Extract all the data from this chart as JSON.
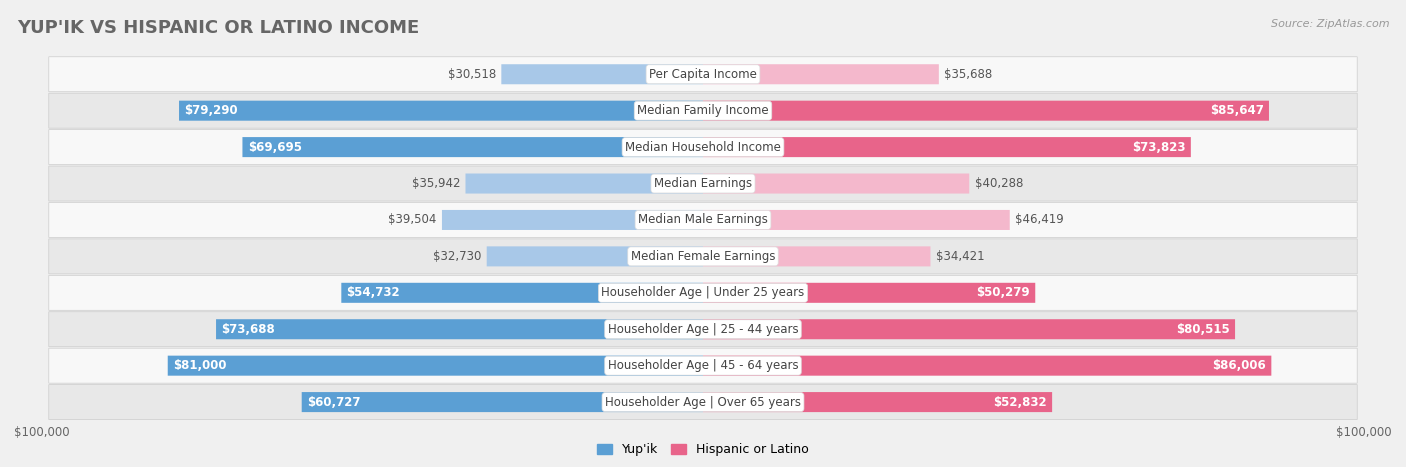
{
  "title": "Yup'ik vs Hispanic or Latino Income",
  "source": "Source: ZipAtlas.com",
  "categories": [
    "Per Capita Income",
    "Median Family Income",
    "Median Household Income",
    "Median Earnings",
    "Median Male Earnings",
    "Median Female Earnings",
    "Householder Age | Under 25 years",
    "Householder Age | 25 - 44 years",
    "Householder Age | 45 - 64 years",
    "Householder Age | Over 65 years"
  ],
  "yupik_values": [
    30518,
    79290,
    69695,
    35942,
    39504,
    32730,
    54732,
    73688,
    81000,
    60727
  ],
  "hispanic_values": [
    35688,
    85647,
    73823,
    40288,
    46419,
    34421,
    50279,
    80515,
    86006,
    52832
  ],
  "yupik_labels": [
    "$30,518",
    "$79,290",
    "$69,695",
    "$35,942",
    "$39,504",
    "$32,730",
    "$54,732",
    "$73,688",
    "$81,000",
    "$60,727"
  ],
  "hispanic_labels": [
    "$35,688",
    "$85,647",
    "$73,823",
    "$40,288",
    "$46,419",
    "$34,421",
    "$50,279",
    "$80,515",
    "$86,006",
    "$52,832"
  ],
  "yupik_color_light": "#a8c8e8",
  "yupik_color_dark": "#5b9fd4",
  "hispanic_color_light": "#f4b8cc",
  "hispanic_color_dark": "#e8648a",
  "yupik_threshold": 50000,
  "hispanic_threshold": 50000,
  "max_value": 100000,
  "background_color": "#f0f0f0",
  "row_bg_light": "#f8f8f8",
  "row_bg_dark": "#e8e8e8",
  "title_fontsize": 13,
  "label_fontsize": 8.5,
  "legend_fontsize": 9,
  "axis_fontsize": 8.5
}
